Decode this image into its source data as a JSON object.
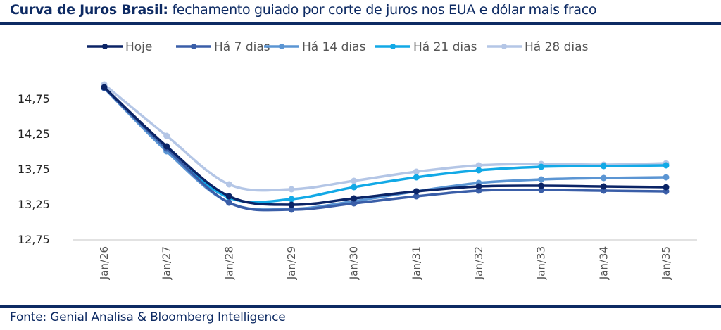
{
  "header": {
    "title_bold": "Curva de Juros Brasil:",
    "title_rest": " fechamento guiado por corte de juros nos EUA e dólar mais fraco"
  },
  "footer": {
    "source": "Fonte: Genial Analisa & Bloomberg Intelligence"
  },
  "colors": {
    "brand": "#0d2a63",
    "grid": "#d9d9d9"
  },
  "chart_data": {
    "type": "line",
    "title": "Curva de Juros Brasil: fechamento guiado por corte de juros nos EUA e dólar mais fraco",
    "xlabel": "",
    "ylabel": "",
    "categories": [
      "Jan/26",
      "Jan/27",
      "Jan/28",
      "Jan/29",
      "Jan/30",
      "Jan/31",
      "Jan/32",
      "Jan/33",
      "Jan/34",
      "Jan/35"
    ],
    "ylim": [
      12.75,
      14.75
    ],
    "yticks": [
      12.75,
      13.25,
      13.75,
      14.25,
      14.75
    ],
    "ytick_labels": [
      "12,75",
      "13,25",
      "13,75",
      "14,25",
      "14,75"
    ],
    "grid": false,
    "legend_position": "top",
    "series": [
      {
        "name": "Hoje",
        "color": "#0b2466",
        "values": [
          14.91,
          14.07,
          13.36,
          13.24,
          13.33,
          13.43,
          13.5,
          13.51,
          13.5,
          13.49
        ]
      },
      {
        "name": "Há 7 dias",
        "color": "#3a5ea8",
        "values": [
          14.9,
          14.04,
          13.27,
          13.17,
          13.26,
          13.36,
          13.44,
          13.45,
          13.44,
          13.43
        ]
      },
      {
        "name": "Há 14 dias",
        "color": "#5b95d3",
        "values": [
          14.9,
          14.0,
          13.27,
          13.18,
          13.29,
          13.43,
          13.55,
          13.6,
          13.62,
          13.63
        ]
      },
      {
        "name": "Há 21 dias",
        "color": "#12a9e6",
        "values": [
          14.9,
          14.02,
          13.34,
          13.32,
          13.49,
          13.63,
          13.73,
          13.78,
          13.79,
          13.8
        ]
      },
      {
        "name": "Há 28 dias",
        "color": "#b4c6e6",
        "values": [
          14.95,
          14.22,
          13.53,
          13.46,
          13.58,
          13.71,
          13.8,
          13.82,
          13.81,
          13.83
        ]
      }
    ]
  }
}
